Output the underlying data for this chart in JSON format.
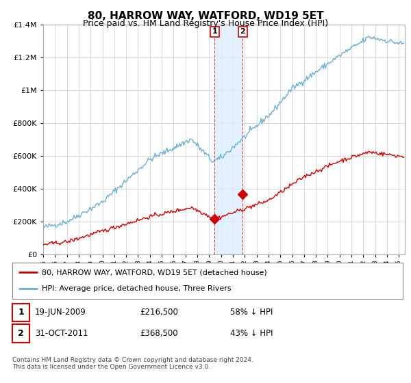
{
  "title": "80, HARROW WAY, WATFORD, WD19 5ET",
  "subtitle": "Price paid vs. HM Land Registry's House Price Index (HPI)",
  "footer": "Contains HM Land Registry data © Crown copyright and database right 2024.\nThis data is licensed under the Open Government Licence v3.0.",
  "legend_entry1": "80, HARROW WAY, WATFORD, WD19 5ET (detached house)",
  "legend_entry2": "HPI: Average price, detached house, Three Rivers",
  "transaction1_label": "1",
  "transaction1_date": "19-JUN-2009",
  "transaction1_price": "£216,500",
  "transaction1_hpi": "58% ↓ HPI",
  "transaction1_x": 2009.46,
  "transaction1_y": 216500,
  "transaction2_label": "2",
  "transaction2_date": "31-OCT-2011",
  "transaction2_price": "£368,500",
  "transaction2_hpi": "43% ↓ HPI",
  "transaction2_x": 2011.83,
  "transaction2_y": 368500,
  "shade_x1": 2009.46,
  "shade_x2": 2011.83,
  "hpi_color": "#6baed6",
  "price_color": "#cc0000",
  "marker_color": "#cc0000",
  "shade_color": "#ddeeff",
  "label_box_color": "#cc0000",
  "vline_color": "#cc0000",
  "ylim_min": 0,
  "ylim_max": 1400000,
  "yticks": [
    0,
    200000,
    400000,
    600000,
    800000,
    1000000,
    1200000,
    1400000
  ],
  "xlim_min": 1995,
  "xlim_max": 2025.5,
  "background_color": "#ffffff",
  "grid_color": "#cccccc",
  "title_fontsize": 11,
  "subtitle_fontsize": 9
}
